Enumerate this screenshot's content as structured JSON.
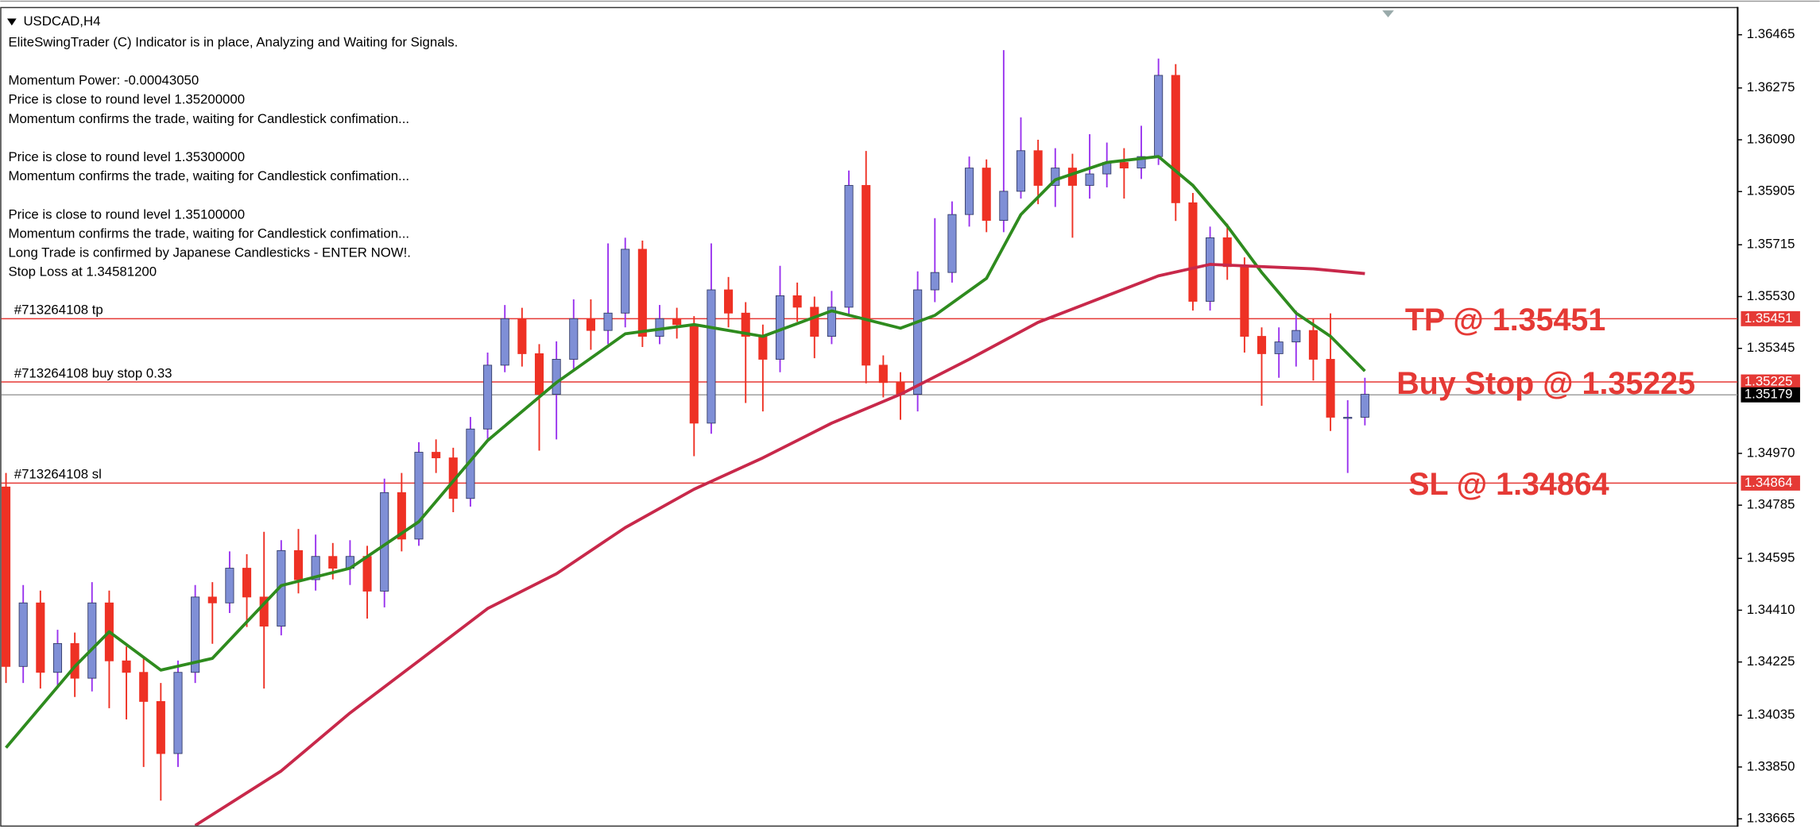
{
  "chart_data": {
    "type": "candlestick",
    "title": "USDCAD,H4",
    "info_blocks": [
      [
        "EliteSwingTrader (C) Indicator is in place, Analyzing and Waiting for Signals."
      ],
      [
        "Momentum Power: -0.00043050",
        "Price is close to round level 1.35200000",
        "Momentum confirms the trade, waiting for Candlestick confimation..."
      ],
      [
        "Price is close to round level 1.35300000",
        "Momentum confirms the trade, waiting for Candlestick confimation..."
      ],
      [
        "Price is close to round level 1.35100000",
        "Momentum confirms the trade, waiting for Candlestick confimation...",
        "Long Trade is confirmed by Japanese Candlesticks - ENTER NOW!.",
        "Stop Loss at 1.34581200"
      ]
    ],
    "ylim": [
      1.33641,
      1.36556
    ],
    "yticks": [
      1.36465,
      1.36275,
      {
        "value": 1.3609,
        "label": "1.36090"
      },
      1.35905,
      1.35715,
      {
        "value": 1.3553,
        "label": "1.35530"
      },
      1.35345,
      {
        "value": 1.3497,
        "label": "1.34970"
      },
      1.34785,
      1.34595,
      {
        "value": 1.3441,
        "label": "1.34410"
      },
      1.34225,
      1.34035,
      {
        "value": 1.3385,
        "label": "1.33850"
      },
      1.33665
    ],
    "bull_color": "#7f8fd6",
    "bear_color": "#ee3124",
    "bull_wick": "#9933ee",
    "bear_wick": "#ee3124",
    "level_color": "#e53935",
    "open": [
      1.3485,
      1.34209,
      1.34436,
      1.34188,
      1.34291,
      1.34167,
      1.34436,
      1.34229,
      1.34188,
      1.34084,
      1.33898,
      1.34188,
      1.34457,
      1.34436,
      1.3456,
      1.34457,
      1.34353,
      1.34623,
      1.34519,
      1.34602,
      1.3456,
      1.34602,
      1.34478,
      1.3483,
      1.34664,
      1.34974,
      1.34954,
      1.34809,
      1.35057,
      1.35285,
      1.35451,
      1.35326,
      1.35181,
      1.35306,
      1.35451,
      1.35409,
      1.35471,
      1.35699,
      1.35388,
      1.35451,
      1.3543,
      1.35078,
      1.35554,
      1.35471,
      1.35388,
      1.35306,
      1.35533,
      1.35492,
      1.35388,
      1.35492,
      1.35927,
      1.35285,
      1.35223,
      1.35181,
      1.35554,
      1.35616,
      1.35823,
      1.35989,
      1.35802,
      1.35906,
      1.36051,
      1.35927,
      1.35989,
      1.35927,
      1.35968,
      1.36009,
      1.35989,
      1.3603,
      1.3632,
      1.35865,
      1.35513,
      1.3574,
      1.35637,
      1.35388,
      1.35326,
      1.35368,
      1.35409,
      1.35306,
      1.35099,
      1.35099
    ],
    "high": [
      1.349,
      1.345,
      1.3448,
      1.3434,
      1.3433,
      1.3451,
      1.3448,
      1.3428,
      1.3424,
      1.3415,
      1.3423,
      1.345,
      1.3451,
      1.3462,
      1.3461,
      1.3469,
      1.3466,
      1.347,
      1.3468,
      1.3465,
      1.3466,
      1.3464,
      1.3488,
      1.349,
      1.3501,
      1.3502,
      1.3499,
      1.351,
      1.3533,
      1.355,
      1.3549,
      1.3536,
      1.3537,
      1.3552,
      1.3552,
      1.3572,
      1.3574,
      1.3573,
      1.355,
      1.3549,
      1.3546,
      1.3572,
      1.356,
      1.3551,
      1.3543,
      1.3564,
      1.3558,
      1.3553,
      1.3555,
      1.3598,
      1.3605,
      1.3532,
      1.3526,
      1.3562,
      1.3581,
      1.3587,
      1.3603,
      1.3602,
      1.3641,
      1.3617,
      1.3609,
      1.3606,
      1.3604,
      1.3611,
      1.3608,
      1.3606,
      1.3614,
      1.3638,
      1.3636,
      1.359,
      1.3578,
      1.3579,
      1.3567,
      1.3542,
      1.3542,
      1.3548,
      1.3545,
      1.3547,
      1.3516,
      1.3524
    ],
    "low": [
      1.3415,
      1.3415,
      1.3413,
      1.3414,
      1.341,
      1.3412,
      1.3406,
      1.3402,
      1.3385,
      1.3373,
      1.3385,
      1.3415,
      1.3429,
      1.344,
      1.3435,
      1.3413,
      1.3432,
      1.3447,
      1.3448,
      1.3452,
      1.345,
      1.3438,
      1.3442,
      1.3462,
      1.3464,
      1.349,
      1.3476,
      1.3478,
      1.3502,
      1.3526,
      1.3528,
      1.3498,
      1.3502,
      1.3527,
      1.3534,
      1.3536,
      1.3542,
      1.3535,
      1.3536,
      1.3538,
      1.3496,
      1.3504,
      1.3542,
      1.3515,
      1.3512,
      1.3526,
      1.3544,
      1.3531,
      1.3536,
      1.3546,
      1.3522,
      1.3517,
      1.3509,
      1.3512,
      1.3551,
      1.3558,
      1.3578,
      1.3576,
      1.3576,
      1.3588,
      1.3586,
      1.3585,
      1.3574,
      1.3588,
      1.3592,
      1.3588,
      1.3595,
      1.36,
      1.358,
      1.3548,
      1.3548,
      1.3559,
      1.3533,
      1.3514,
      1.3524,
      1.3528,
      1.3523,
      1.3505,
      1.349,
      1.3507
    ],
    "close": [
      1.34209,
      1.34436,
      1.34188,
      1.34291,
      1.34167,
      1.34436,
      1.34229,
      1.34188,
      1.34084,
      1.33898,
      1.34188,
      1.34457,
      1.34436,
      1.3456,
      1.34457,
      1.34353,
      1.34623,
      1.34519,
      1.34602,
      1.3456,
      1.34602,
      1.34478,
      1.3483,
      1.34664,
      1.34974,
      1.34954,
      1.34809,
      1.35057,
      1.35285,
      1.35451,
      1.35326,
      1.35181,
      1.35306,
      1.35451,
      1.35409,
      1.35471,
      1.35699,
      1.35388,
      1.35451,
      1.3543,
      1.35078,
      1.35554,
      1.35471,
      1.35388,
      1.35306,
      1.35533,
      1.35492,
      1.35388,
      1.35492,
      1.35927,
      1.35285,
      1.35223,
      1.35181,
      1.35554,
      1.35616,
      1.35823,
      1.35989,
      1.35802,
      1.35906,
      1.36051,
      1.35927,
      1.35989,
      1.35927,
      1.35968,
      1.36009,
      1.35989,
      1.3603,
      1.3632,
      1.35865,
      1.35513,
      1.3574,
      1.35637,
      1.35388,
      1.35326,
      1.35368,
      1.35409,
      1.35306,
      1.35099,
      1.35099,
      1.35181
    ],
    "series": [
      {
        "color": "#2e8b1e",
        "x": [
          0,
          4,
          6,
          9,
          12,
          16,
          20,
          24,
          28,
          32,
          36,
          40,
          44,
          48,
          52,
          54,
          57,
          59,
          61,
          64,
          67,
          69,
          71,
          73,
          75,
          77,
          79
        ],
        "values": [
          1.33919,
          1.34209,
          1.34333,
          1.34196,
          1.34238,
          1.34498,
          1.3456,
          1.34726,
          1.35016,
          1.35223,
          1.35397,
          1.3543,
          1.35388,
          1.35479,
          1.35417,
          1.35463,
          1.35595,
          1.35823,
          1.35947,
          1.36009,
          1.3603,
          1.35927,
          1.35782,
          1.35616,
          1.35471,
          1.35388,
          1.35264
        ]
      },
      {
        "color": "#c8284a",
        "x": [
          11,
          16,
          20,
          24,
          28,
          32,
          36,
          40,
          44,
          48,
          52,
          56,
          60,
          64,
          67,
          70,
          73,
          76,
          79
        ],
        "values": [
          1.33641,
          1.33836,
          1.34043,
          1.34229,
          1.34416,
          1.3454,
          1.34705,
          1.34842,
          1.34954,
          1.35078,
          1.35181,
          1.35306,
          1.35438,
          1.35533,
          1.35604,
          1.35645,
          1.35637,
          1.35629,
          1.35612
        ]
      }
    ],
    "levels": [
      {
        "name": "#713264108 tp",
        "value": 1.35451,
        "annotation": "TP @ 1.35451"
      },
      {
        "name": "#713264108 buy stop 0.33",
        "value": 1.35225,
        "annotation": "Buy Stop @ 1.35225"
      },
      {
        "name": "#713264108 sl",
        "value": 1.34864,
        "annotation": "SL @ 1.34864"
      }
    ],
    "current_price": 1.35179
  }
}
